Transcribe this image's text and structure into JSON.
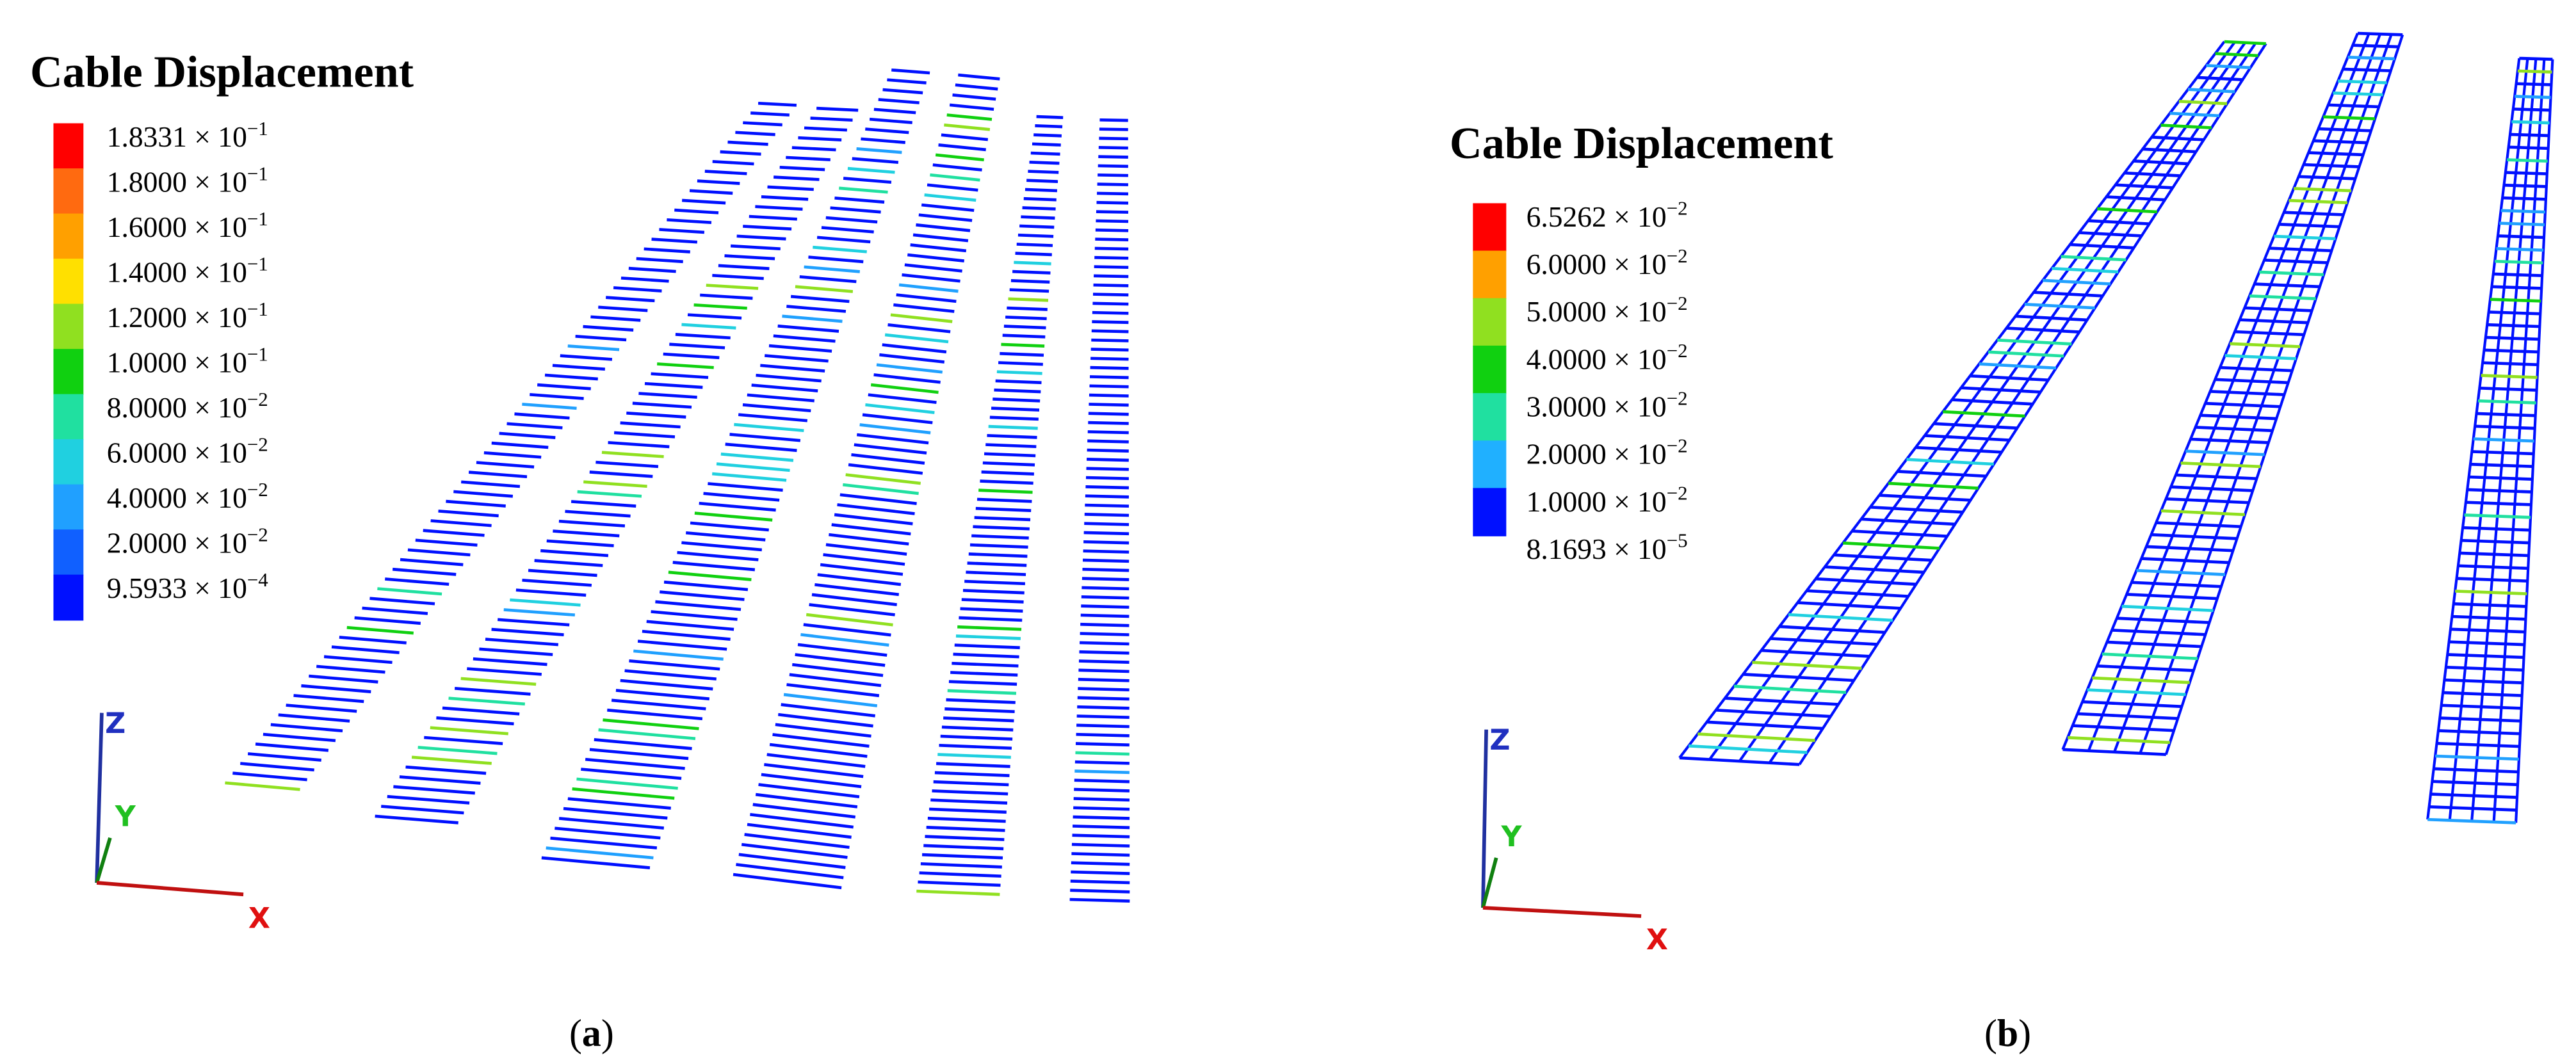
{
  "panels": [
    {
      "title": "Cable Displacement",
      "legend": [
        {
          "base": "1.8331 × 10",
          "exponent": "−1"
        },
        {
          "base": "1.8000 × 10",
          "exponent": "−1"
        },
        {
          "base": "1.6000 × 10",
          "exponent": "−1"
        },
        {
          "base": "1.4000 × 10",
          "exponent": "−1"
        },
        {
          "base": "1.2000 × 10",
          "exponent": "−1"
        },
        {
          "base": "1.0000 × 10",
          "exponent": "−1"
        },
        {
          "base": "8.0000 × 10",
          "exponent": "−2"
        },
        {
          "base": "6.0000 × 10",
          "exponent": "−2"
        },
        {
          "base": "4.0000 × 10",
          "exponent": "−2"
        },
        {
          "base": "2.0000 × 10",
          "exponent": "−2"
        },
        {
          "base": "9.5933 × 10",
          "exponent": "−4"
        }
      ],
      "colors": [
        "#ff0000",
        "#ff6a10",
        "#ffa000",
        "#ffe000",
        "#90e020",
        "#10d010",
        "#20e0a0",
        "#20d0e0",
        "#20a0ff",
        "#1060ff",
        "#0010ff"
      ],
      "axes": {
        "z": "Z",
        "y": "Y",
        "x": "X"
      },
      "caption": [
        "(",
        "a",
        ")"
      ]
    },
    {
      "title": "Cable Displacement",
      "legend": [
        {
          "base": "6.5262 × 10",
          "exponent": "−2"
        },
        {
          "base": "6.0000 × 10",
          "exponent": "−2"
        },
        {
          "base": "5.0000 × 10",
          "exponent": "−2"
        },
        {
          "base": "4.0000 × 10",
          "exponent": "−2"
        },
        {
          "base": "3.0000 × 10",
          "exponent": "−2"
        },
        {
          "base": "2.0000 × 10",
          "exponent": "−2"
        },
        {
          "base": "1.0000 × 10",
          "exponent": "−2"
        },
        {
          "base": "8.1693 × 10",
          "exponent": "−5"
        }
      ],
      "colors": [
        "#ff0000",
        "#ffa000",
        "#90e020",
        "#10d010",
        "#20e0a0",
        "#20b0ff",
        "#0010ff"
      ],
      "axes": {
        "z": "Z",
        "y": "Y",
        "x": "X"
      },
      "caption": [
        "(",
        "b",
        ")"
      ]
    }
  ]
}
